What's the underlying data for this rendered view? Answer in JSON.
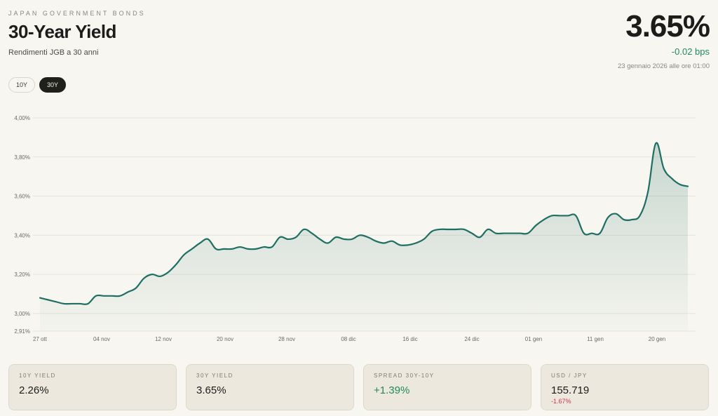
{
  "header": {
    "eyebrow": "JAPAN GOVERNMENT BONDS",
    "title": "30-Year Yield",
    "subtitle": "Rendimenti JGB a 30 anni"
  },
  "quote": {
    "price": "3.65%",
    "change": "-0.02 bps",
    "timestamp": "23 gennaio 2026 alle ore 01:00"
  },
  "tabs": [
    {
      "label": "10Y",
      "active": false
    },
    {
      "label": "30Y",
      "active": true
    }
  ],
  "colors": {
    "line": "#1e6e63",
    "positive": "#1f8a5a",
    "negative": "#d0344a",
    "background": "#f8f6f0"
  },
  "chart_data": {
    "type": "area",
    "title": "",
    "xlabel": "",
    "ylabel": "",
    "ylim": [
      2.91,
      4.0
    ],
    "y_ticks": [
      "4,00%",
      "3,80%",
      "3,60%",
      "3,40%",
      "3,20%",
      "3,00%",
      "2,91%"
    ],
    "y_tick_values": [
      4.0,
      3.8,
      3.6,
      3.4,
      3.2,
      3.0,
      2.91
    ],
    "x_ticks": [
      "27 ott",
      "04 nov",
      "12 nov",
      "20 nov",
      "28 nov",
      "08 dic",
      "16 dic",
      "24 dic",
      "01 gen",
      "11 gen",
      "20 gen"
    ],
    "grid": true,
    "series": [
      {
        "values": [
          3.08,
          3.07,
          3.06,
          3.05,
          3.05,
          3.05,
          3.05,
          3.09,
          3.09,
          3.09,
          3.09,
          3.11,
          3.13,
          3.18,
          3.2,
          3.19,
          3.21,
          3.25,
          3.3,
          3.33,
          3.36,
          3.38,
          3.33,
          3.33,
          3.33,
          3.34,
          3.33,
          3.33,
          3.34,
          3.34,
          3.39,
          3.38,
          3.39,
          3.43,
          3.41,
          3.38,
          3.36,
          3.39,
          3.38,
          3.38,
          3.4,
          3.39,
          3.37,
          3.36,
          3.37,
          3.35,
          3.35,
          3.36,
          3.38,
          3.42,
          3.43,
          3.43,
          3.43,
          3.43,
          3.41,
          3.39,
          3.43,
          3.41,
          3.41,
          3.41,
          3.41,
          3.41,
          3.45,
          3.48,
          3.5,
          3.5,
          3.5,
          3.5,
          3.41,
          3.41,
          3.41,
          3.49,
          3.51,
          3.48,
          3.48,
          3.5,
          3.62,
          3.87,
          3.74,
          3.69,
          3.66,
          3.65
        ]
      }
    ]
  },
  "cards": [
    {
      "label": "10Y YIELD",
      "value": "2.26%",
      "sub": ""
    },
    {
      "label": "30Y YIELD",
      "value": "3.65%",
      "sub": ""
    },
    {
      "label": "SPREAD 30Y-10Y",
      "value": "+1.39%",
      "sub": ""
    },
    {
      "label": "USD / JPY",
      "value": "155.719",
      "sub": "-1.67%"
    }
  ]
}
